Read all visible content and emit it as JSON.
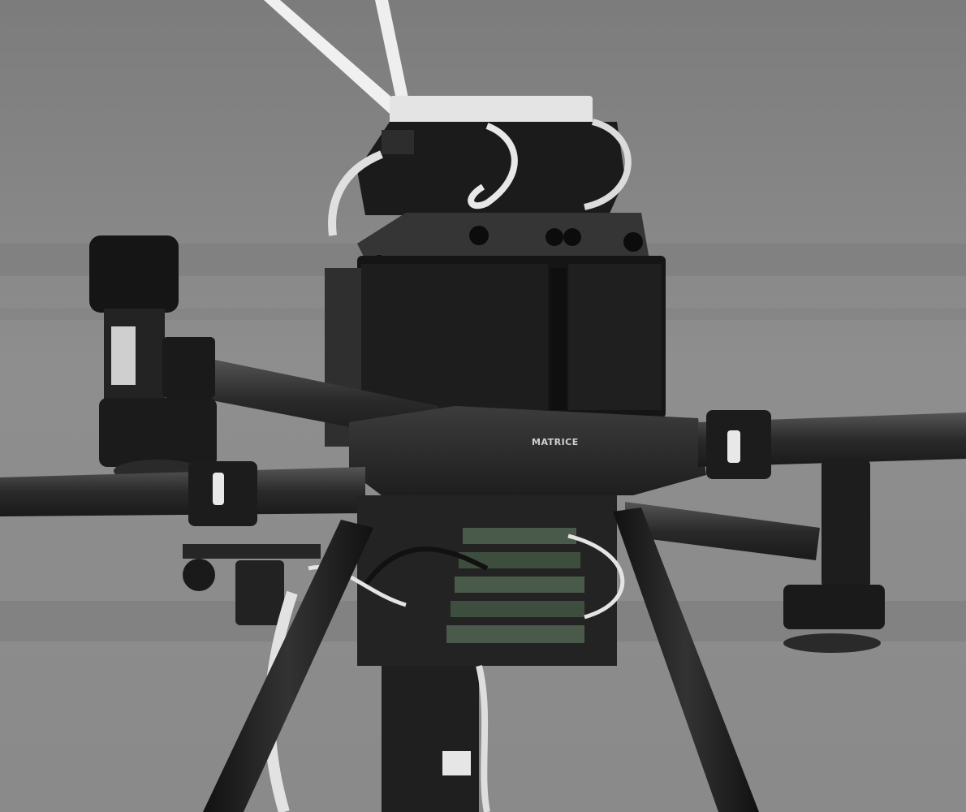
{
  "photo": {
    "subject": "drone",
    "brand_label": "MATRICE",
    "colors": {
      "wall": "#8b8b8b",
      "wall_dark": "#6e6e6e",
      "body": "#1c1c1c",
      "body_light": "#3a3a3a",
      "arm": "#2e2e2e",
      "cable_white": "#e6e6e6",
      "board_green": "#4a5a4a"
    }
  }
}
